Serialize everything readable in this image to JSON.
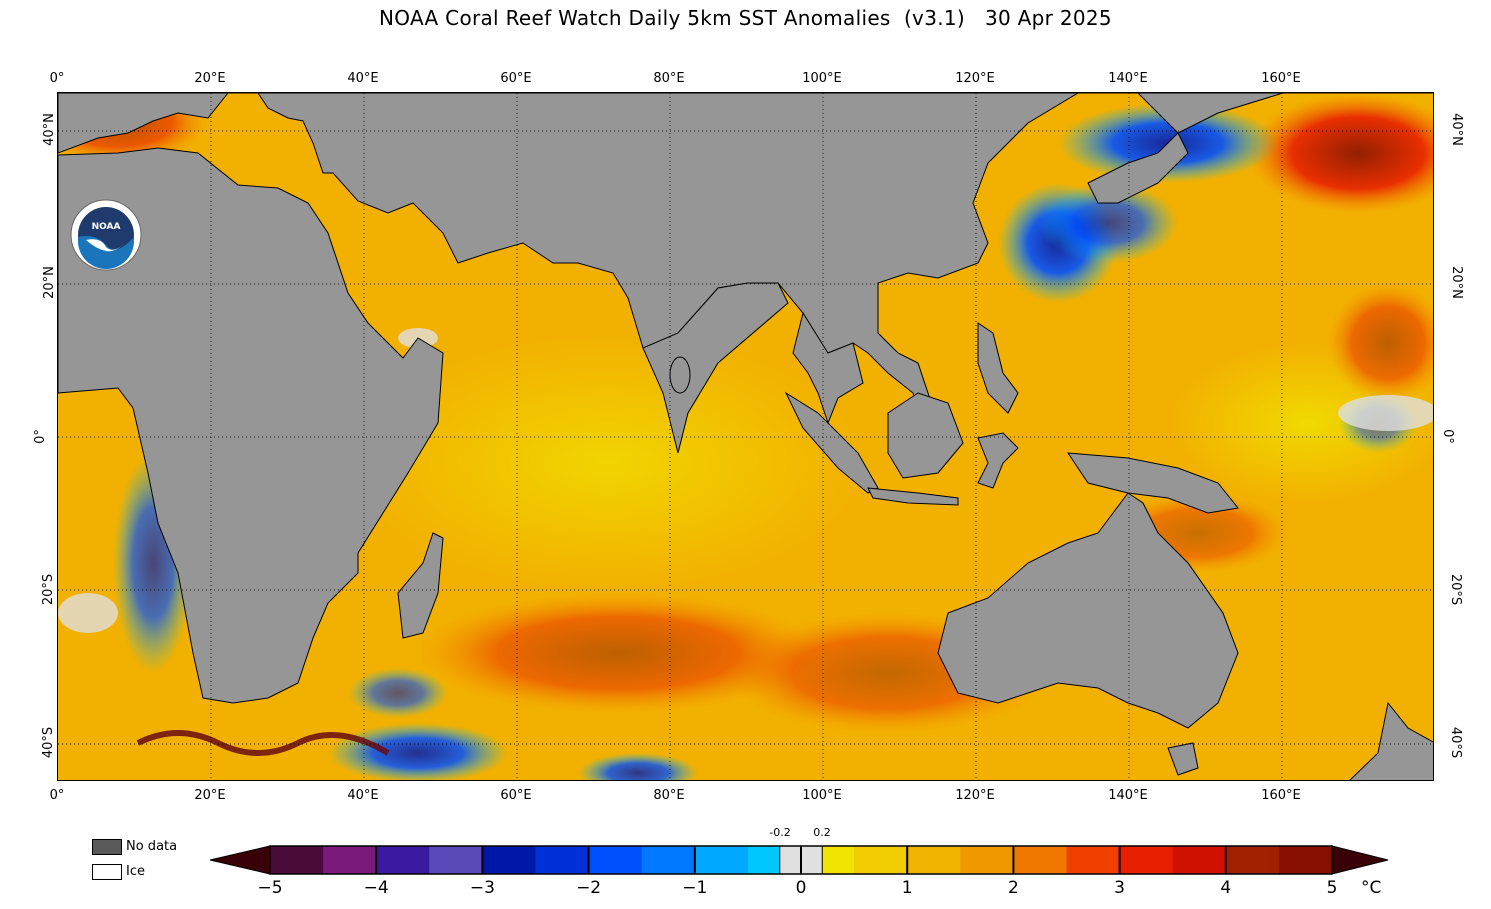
{
  "title": "NOAA Coral Reef Watch Daily 5km SST Anomalies  (v3.1)   30 Apr 2025",
  "logo": {
    "text": "NOAA",
    "icon": "noaa-logo-icon"
  },
  "map": {
    "lon_ticks": [
      "0°",
      "20°E",
      "40°E",
      "60°E",
      "80°E",
      "100°E",
      "120°E",
      "140°E",
      "160°E"
    ],
    "lat_ticks_left": [
      "40°N",
      "20°N",
      "0°",
      "20°S",
      "40°S"
    ],
    "lat_ticks_right": [
      "40°N",
      "20°N",
      "0°",
      "20°S",
      "40°S"
    ],
    "land_color": "#969696",
    "no_data_color": "#5a5a5a",
    "ice_color": "#ffffff",
    "grid": "dotted",
    "lon_range": [
      0,
      180
    ],
    "lat_range": [
      -45,
      45
    ]
  },
  "legend": {
    "no_data_label": "No data",
    "ice_label": "Ice"
  },
  "colorbar": {
    "ticks": [
      "−5",
      "−4",
      "−3",
      "−2",
      "−1",
      "0",
      "1",
      "2",
      "3",
      "4",
      "5"
    ],
    "small_labels": [
      "-0.2",
      "0.2"
    ],
    "unit": "°C",
    "range": [
      -5,
      5
    ],
    "colors": {
      "dark_purple": "#4a0a3a",
      "purple": "#7a1a7a",
      "indigo": "#3a1aa0",
      "navy": "#0018a8",
      "blue": "#0050ff",
      "cyan": "#00c8ff",
      "light_gray": "#e0e0e0",
      "yellow": "#f0e400",
      "gold": "#f0b400",
      "orange": "#f07800",
      "red": "#e82000",
      "dark_red": "#881000"
    }
  }
}
